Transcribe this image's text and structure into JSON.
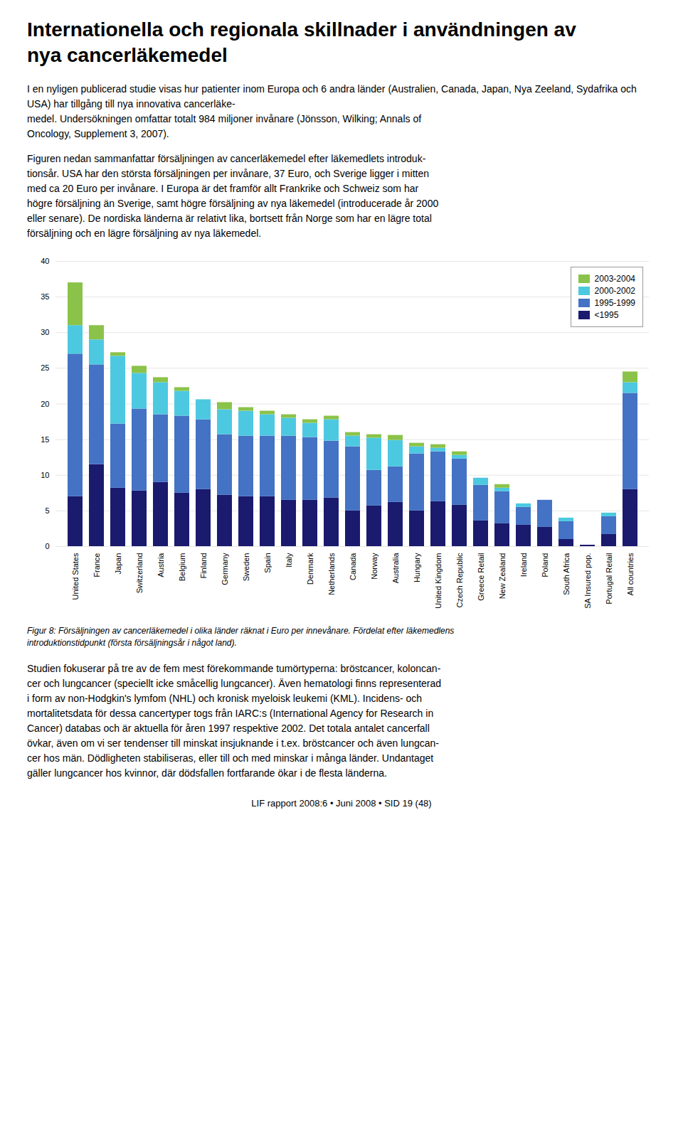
{
  "chart_data": {
    "type": "bar",
    "stacked": true,
    "title": "Internationella och regionala skillnader i användningen av\nnya cancerläkemedel",
    "annotations": [
      "I en nyligen publicerad studie visas hur patienter inom Europa och 6 andra länder (Australien, Canada, Japan, Nya Zeeland, Sydafrika och USA) har tillgång till nya innovativa cancerläke-\nmedel. Undersökningen omfattar totalt 984 miljoner invånare (Jönsson, Wilking; Annals of\nOncology, Supplement 3, 2007).",
      "Figuren nedan sammanfattar försäljningen av cancerläkemedel efter läkemedlets introduk-\ntionsår. USA har den största försäljningen per invånare, 37 Euro, och Sverige ligger i mitten\nmed ca 20 Euro per invånare. I Europa är det framför allt Frankrike och Schweiz som har\nhögre försäljning än Sverige, samt högre försäljning av nya läkemedel (introducerade år 2000\neller senare). De nordiska länderna är relativt lika, bortsett från Norge som har en lägre total\nförsäljning och en lägre försäljning av nya läkemedel.",
      "Figur 8: Försäljningen av cancerläkemedel i olika länder räknat i Euro per innevånare. Fördelat efter läkemedlens\nintroduktionstidpunkt (första försäljningsår i något land).",
      "Studien fokuserar på tre av de fem mest förekommande tumörtyperna: bröstcancer, koloncan-\ncer och lungcancer (speciellt icke småcellig lungcancer). Även hematologi finns representerad\ni form av non-Hodgkin's lymfom (NHL) och kronisk myeloisk leukemi (KML). Incidens- och\nmortalitetsdata för dessa cancertyper togs från IARC:s (International Agency for Research in\nCancer) databas och är aktuella för åren 1997 respektive 2002. Det totala antalet cancerfall\növkar, även om vi ser tendenser till minskat insjuknande i t.ex. bröstcancer och även lungcan-\ncer hos män. Dödligheten stabiliseras, eller till och med minskar i många länder. Undantaget\ngäller lungcancer hos kvinnor, där dödsfallen fortfarande ökar i de flesta länderna.",
      "LIF rapport 2008:6 • Juni 2008 • SID 19 (48)"
    ],
    "categories": [
      "United States",
      "France",
      "Japan",
      "Switzerland",
      "Austria",
      "Belgium",
      "Finland",
      "Germany",
      "Sweden",
      "Spain",
      "Italy",
      "Denmark",
      "Netherlands",
      "Canada",
      "Norway",
      "Australia",
      "Hungary",
      "United Kingdom",
      "Czech Republic",
      "Greece Retail",
      "New Zealand",
      "Ireland",
      "Poland",
      "South Africa",
      "SA Insured pop.",
      "Portugal Retail",
      "All countries"
    ],
    "series": [
      {
        "name": "<1995",
        "color": "#1a1a6e",
        "values": [
          7.0,
          11.5,
          8.2,
          7.8,
          9.0,
          7.5,
          8.0,
          7.2,
          7.0,
          7.0,
          6.5,
          6.5,
          6.8,
          5.0,
          5.7,
          6.2,
          5.0,
          6.3,
          5.8,
          3.6,
          3.2,
          3.0,
          2.7,
          1.0,
          0.2,
          1.7,
          8.0
        ]
      },
      {
        "name": "1995-1999",
        "color": "#4472C4",
        "values": [
          20.0,
          14.0,
          9.0,
          11.5,
          9.5,
          10.8,
          9.8,
          8.5,
          8.5,
          8.5,
          9.0,
          8.8,
          8.0,
          9.0,
          5.0,
          5.0,
          8.0,
          7.0,
          6.5,
          5.0,
          4.5,
          2.5,
          3.8,
          2.5,
          0.0,
          2.5,
          13.5
        ]
      },
      {
        "name": "2000-2002",
        "color": "#4CC9E0",
        "values": [
          4.0,
          3.5,
          9.5,
          5.0,
          4.5,
          3.5,
          2.8,
          3.5,
          3.5,
          3.0,
          2.5,
          2.0,
          3.0,
          1.5,
          4.5,
          3.7,
          1.0,
          0.5,
          0.5,
          1.0,
          0.5,
          0.5,
          0.0,
          0.5,
          0.0,
          0.5,
          1.5
        ]
      },
      {
        "name": "2003-2004",
        "color": "#8BC34A",
        "values": [
          6.0,
          2.0,
          0.5,
          1.0,
          0.7,
          0.5,
          0.0,
          1.0,
          0.5,
          0.5,
          0.5,
          0.5,
          0.5,
          0.5,
          0.5,
          0.7,
          0.5,
          0.5,
          0.5,
          0.0,
          0.5,
          0.0,
          0.0,
          0.0,
          0.0,
          0.0,
          1.5
        ]
      }
    ],
    "ylim": [
      0,
      40
    ],
    "yticks": [
      0,
      5,
      10,
      15,
      20,
      25,
      30,
      35,
      40
    ],
    "grid": true,
    "legend": "upper right"
  }
}
